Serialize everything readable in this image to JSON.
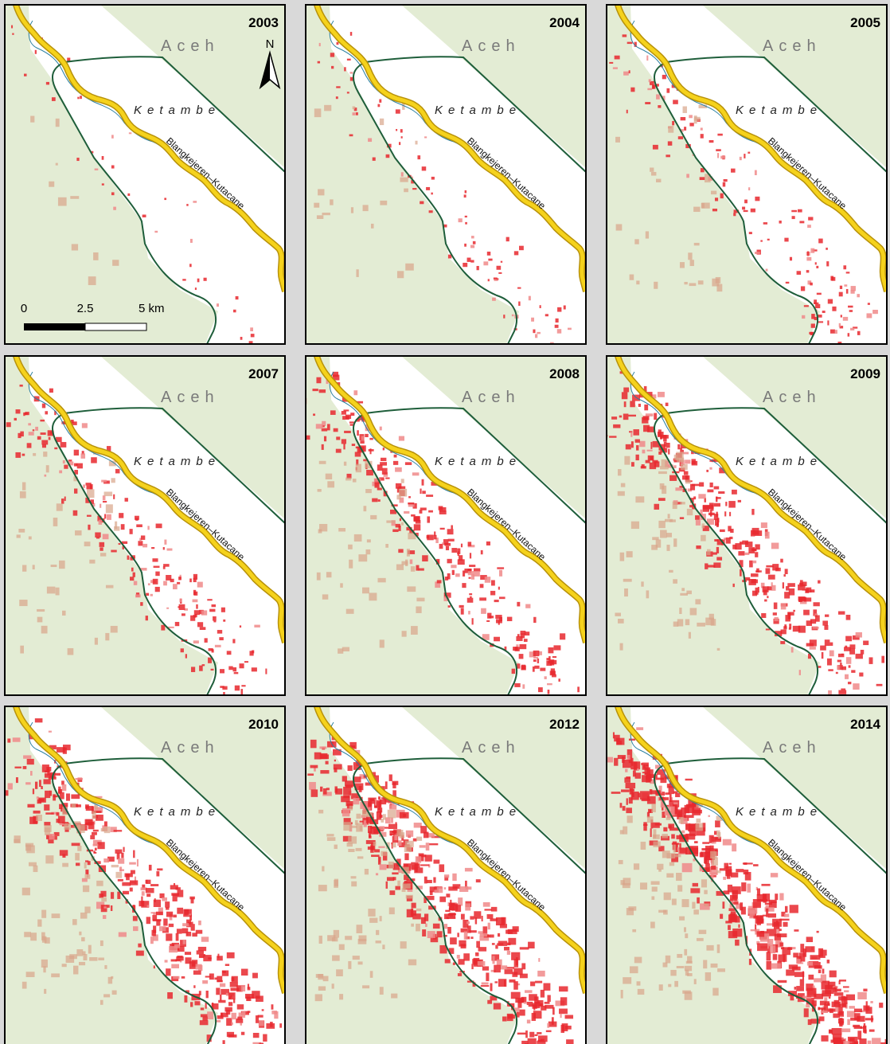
{
  "panels": [
    {
      "year": "2003"
    },
    {
      "year": "2004"
    },
    {
      "year": "2005"
    },
    {
      "year": "2007"
    },
    {
      "year": "2008"
    },
    {
      "year": "2009"
    },
    {
      "year": "2010"
    },
    {
      "year": "2012"
    },
    {
      "year": "2014"
    }
  ],
  "labels": {
    "region": "Aceh",
    "place": "Ketambe",
    "road": "Blangkejeren–Kutacane"
  },
  "scale_bar": {
    "labels": [
      "0",
      "2.5",
      "5 km"
    ]
  },
  "north_arrow": "N"
}
